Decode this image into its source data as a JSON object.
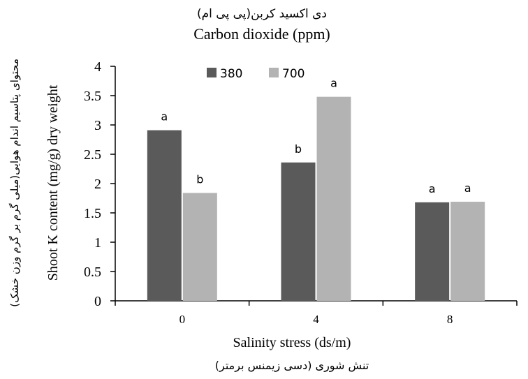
{
  "chart_data": {
    "type": "bar",
    "title": "Carbon dioxide (ppm)",
    "title_fa": "دی اکسید کربن(پی پی ام)",
    "xlabel": "Salinity stress (ds/m)",
    "xlabel_fa": "تنش شوری (دسی زیمنس برمتر)",
    "ylabel": "Shoot K content (mg/g) dry weight",
    "ylabel_fa": "محتوای پتاسیم اندام هوایی(میلی گرم بر گرم وزن خشک)",
    "categories": [
      "0",
      "4",
      "8"
    ],
    "ylim": [
      0,
      4
    ],
    "yticks": [
      "0",
      "0.5",
      "1",
      "1.5",
      "2",
      "2.5",
      "3",
      "3.5",
      "4"
    ],
    "grid": false,
    "legend_position": "top",
    "series": [
      {
        "name": "380",
        "color": "#5a5a5a",
        "values": [
          2.91,
          2.36,
          1.68
        ],
        "labels": [
          "a",
          "b",
          "a"
        ]
      },
      {
        "name": "700",
        "color": "#b3b3b3",
        "values": [
          1.84,
          3.48,
          1.69
        ],
        "labels": [
          "b",
          "a",
          "a"
        ]
      }
    ]
  }
}
